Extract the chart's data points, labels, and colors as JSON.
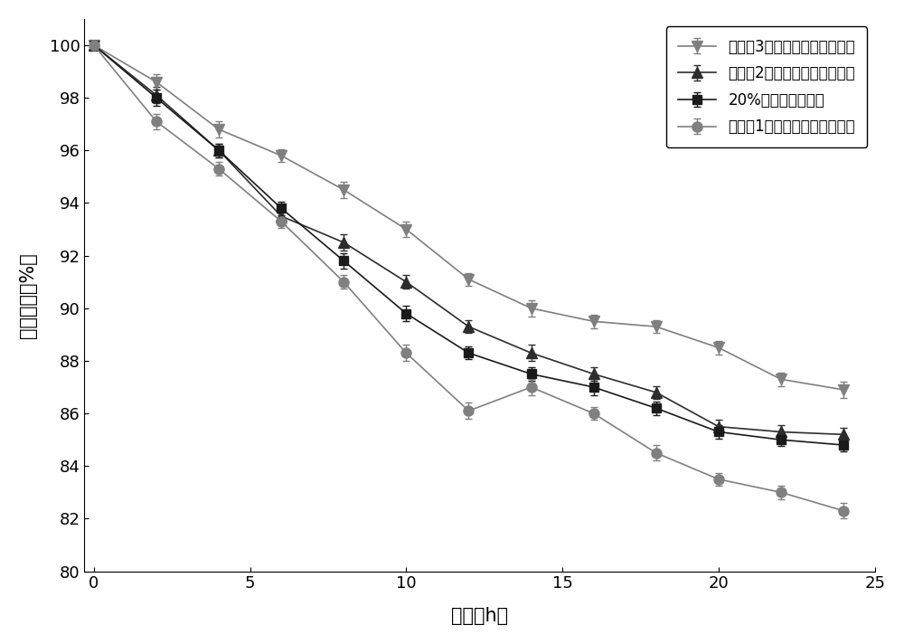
{
  "x": [
    0,
    2,
    4,
    6,
    8,
    10,
    12,
    14,
    16,
    18,
    20,
    22,
    24
  ],
  "series": [
    {
      "label": "实施例3中的复合蛋白肽水凝胶",
      "y": [
        100,
        98.6,
        96.8,
        95.8,
        94.5,
        93.0,
        91.1,
        90.0,
        89.5,
        89.3,
        88.5,
        87.3,
        86.9
      ],
      "yerr": [
        0.15,
        0.3,
        0.3,
        0.25,
        0.3,
        0.3,
        0.25,
        0.3,
        0.25,
        0.25,
        0.25,
        0.25,
        0.3
      ],
      "color": "#7f7f7f",
      "marker": "v",
      "markersize": 8,
      "linewidth": 1.2,
      "linestyle": "-"
    },
    {
      "label": "实施例2中的复合蛋白肽水凝胶",
      "y": [
        100,
        98.1,
        96.0,
        93.5,
        92.5,
        91.0,
        89.3,
        88.3,
        87.5,
        86.8,
        85.5,
        85.3,
        85.2
      ],
      "yerr": [
        0.15,
        0.3,
        0.25,
        0.3,
        0.3,
        0.25,
        0.25,
        0.3,
        0.25,
        0.25,
        0.25,
        0.25,
        0.25
      ],
      "color": "#2d2d2d",
      "marker": "^",
      "markersize": 8,
      "linewidth": 1.2,
      "linestyle": "-"
    },
    {
      "label": "20%甘油（对照组）",
      "y": [
        100,
        98.0,
        96.0,
        93.8,
        91.8,
        89.8,
        88.3,
        87.5,
        87.0,
        86.2,
        85.3,
        85.0,
        84.8
      ],
      "yerr": [
        0.15,
        0.3,
        0.25,
        0.25,
        0.3,
        0.3,
        0.25,
        0.25,
        0.3,
        0.25,
        0.25,
        0.25,
        0.25
      ],
      "color": "#1a1a1a",
      "marker": "s",
      "markersize": 7,
      "linewidth": 1.2,
      "linestyle": "-"
    },
    {
      "label": "实施例1中的复合蛋白肽水凝胶",
      "y": [
        100,
        97.1,
        95.3,
        93.3,
        91.0,
        88.3,
        86.1,
        87.0,
        86.0,
        84.5,
        83.5,
        83.0,
        82.3
      ],
      "yerr": [
        0.15,
        0.3,
        0.25,
        0.25,
        0.25,
        0.3,
        0.3,
        0.3,
        0.25,
        0.3,
        0.25,
        0.25,
        0.3
      ],
      "color": "#808080",
      "marker": "o",
      "markersize": 8,
      "linewidth": 1.2,
      "linestyle": "-"
    }
  ],
  "xlabel": "时间（h）",
  "ylabel": "保湿性能（%）",
  "xlim": [
    -0.3,
    25
  ],
  "ylim": [
    80,
    101
  ],
  "xticks": [
    0,
    5,
    10,
    15,
    20,
    25
  ],
  "yticks": [
    80,
    82,
    84,
    86,
    88,
    90,
    92,
    94,
    96,
    98,
    100
  ],
  "legend_loc": "upper right",
  "background_color": "#ffffff",
  "xlabel_fontsize": 15,
  "ylabel_fontsize": 15,
  "tick_fontsize": 13,
  "legend_fontsize": 12
}
